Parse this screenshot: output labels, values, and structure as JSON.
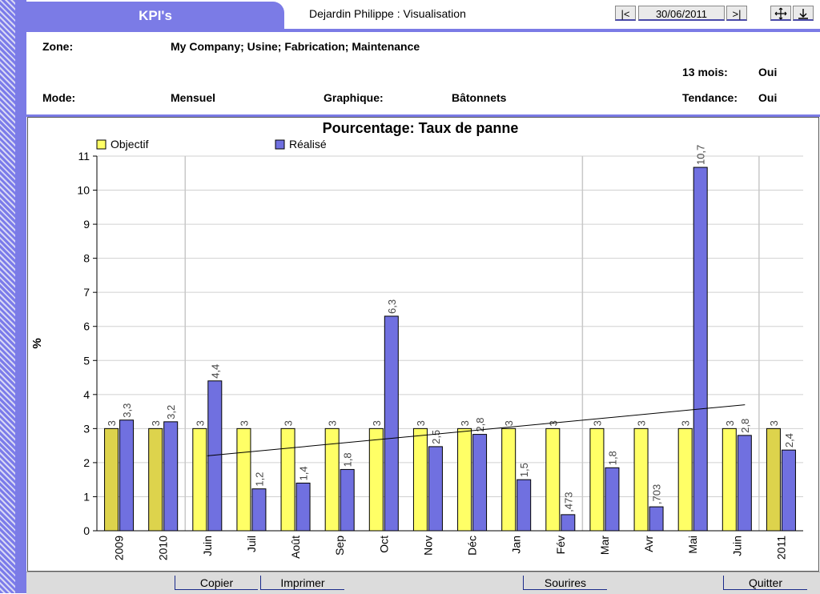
{
  "header": {
    "app_title": "KPI's",
    "user_text": "Dejardin Philippe :  Visualisation",
    "nav_prev": "|<",
    "date": "30/06/2011",
    "nav_next": ">|"
  },
  "info": {
    "zone_label": "Zone:",
    "zone_value": "My Company; Usine; Fabrication; Maintenance",
    "mois_label": "13 mois:",
    "mois_value": "Oui",
    "mode_label": "Mode:",
    "mode_value": "Mensuel",
    "graphique_label": "Graphique:",
    "graphique_value": "Bâtonnets",
    "tendance_label": "Tendance:",
    "tendance_value": "Oui"
  },
  "footer": {
    "copier": "Copier",
    "imprimer": "Imprimer",
    "sourires": "Sourires",
    "quitter": "Quitter"
  },
  "chart_data": {
    "type": "bar",
    "title": "Pourcentage: Taux de panne",
    "ylabel": "%",
    "xlabel": "",
    "ylim": [
      0,
      11
    ],
    "yticks": [
      0,
      1,
      2,
      3,
      4,
      5,
      6,
      7,
      8,
      9,
      10,
      11
    ],
    "legend_position": "top-left",
    "grid": true,
    "categories": [
      "2009",
      "2010",
      "Juin",
      "Juil",
      "Août",
      "Sep",
      "Oct",
      "Nov",
      "Déc",
      "Jan",
      "Fév",
      "Mar",
      "Avr",
      "Mai",
      "Juin",
      "2011"
    ],
    "series": [
      {
        "name": "Objectif",
        "color": "#ffff66",
        "values": [
          3,
          3,
          3,
          3,
          3,
          3,
          3,
          3,
          3,
          3,
          3,
          3,
          3,
          3,
          3,
          3
        ],
        "labels": [
          "3",
          "3",
          "3",
          "3",
          "3",
          "3",
          "3",
          "3",
          "3",
          "3",
          "3",
          "3",
          "3",
          "3",
          "3",
          "3"
        ]
      },
      {
        "name": "Réalisé",
        "color": "#7070e0",
        "values": [
          3.25,
          3.2,
          4.4,
          1.23,
          1.4,
          1.8,
          6.3,
          2.47,
          2.83,
          1.5,
          0.473,
          1.85,
          0.703,
          10.67,
          2.8,
          2.37
        ],
        "labels": [
          "3,3",
          "3,2",
          "4,4",
          "1,2",
          "1,4",
          "1,8",
          "6,3",
          "2,5",
          "2,8",
          "1,5",
          ",473",
          "1,8",
          ",703",
          "10,7",
          "2,8",
          "2,4"
        ]
      }
    ],
    "trend": {
      "from": {
        "category": "Juin",
        "value": 2.2
      },
      "to": {
        "category": "Juin",
        "value": 3.7
      }
    }
  }
}
